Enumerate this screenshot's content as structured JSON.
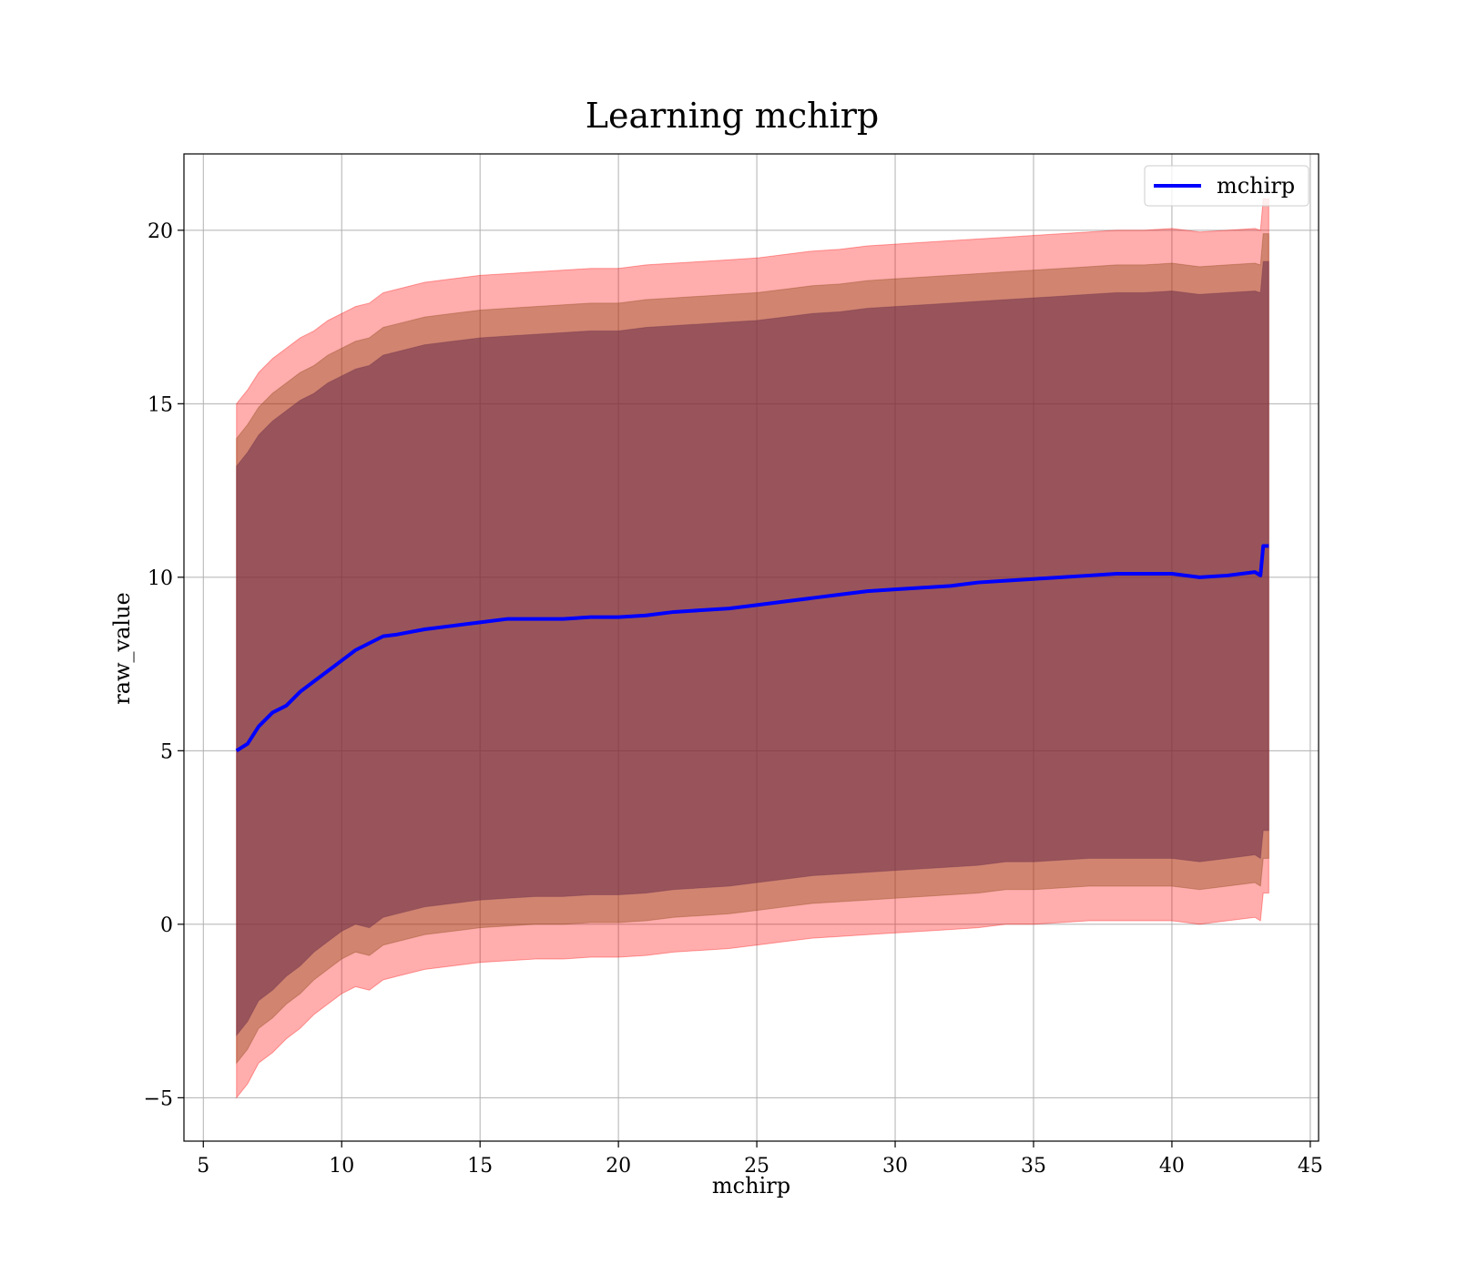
{
  "chart_data": {
    "type": "line",
    "title": "Learning mchirp",
    "xlabel": "mchirp",
    "ylabel": "raw_value",
    "xlim": [
      4.3,
      45.3
    ],
    "ylim": [
      -6.25,
      22.2
    ],
    "xticks": [
      5,
      10,
      15,
      20,
      25,
      30,
      35,
      40,
      45
    ],
    "xtick_labels": [
      "5",
      "10",
      "15",
      "20",
      "25",
      "30",
      "35",
      "40",
      "45"
    ],
    "yticks": [
      -5,
      0,
      5,
      10,
      15,
      20
    ],
    "ytick_labels": [
      "−5",
      "0",
      "5",
      "10",
      "15",
      "20"
    ],
    "grid": true,
    "legend_position": "top-right",
    "colors": {
      "line": "#0000ff",
      "band_outer": "#ff0000",
      "band_middle": "#8b4513",
      "band_inner": "#6b2e4a"
    },
    "series": [
      {
        "name": "mchirp",
        "style": "line",
        "x": [
          6.2,
          6.6,
          7.0,
          7.5,
          8.0,
          8.5,
          9.0,
          9.5,
          10.0,
          10.5,
          11.0,
          11.5,
          12,
          13,
          14,
          15,
          16,
          17,
          18,
          19,
          20,
          21,
          22,
          23,
          24,
          25,
          26,
          27,
          28,
          29,
          30,
          31,
          32,
          33,
          34,
          35,
          36,
          37,
          38,
          39,
          40,
          41,
          42,
          43,
          43.2,
          43.3,
          43.5
        ],
        "y": [
          5.0,
          5.2,
          5.7,
          6.1,
          6.3,
          6.7,
          7.0,
          7.3,
          7.6,
          7.9,
          8.1,
          8.3,
          8.35,
          8.5,
          8.6,
          8.7,
          8.8,
          8.8,
          8.8,
          8.85,
          8.85,
          8.9,
          9.0,
          9.05,
          9.1,
          9.2,
          9.3,
          9.4,
          9.5,
          9.6,
          9.65,
          9.7,
          9.75,
          9.85,
          9.9,
          9.95,
          10.0,
          10.05,
          10.1,
          10.1,
          10.1,
          10.0,
          10.05,
          10.15,
          10.05,
          10.9,
          10.9
        ]
      },
      {
        "name": "",
        "style": "band",
        "x": [
          6.2,
          6.6,
          7.0,
          7.5,
          8.0,
          8.5,
          9.0,
          9.5,
          10.0,
          10.5,
          11.0,
          11.5,
          12,
          13,
          14,
          15,
          16,
          17,
          18,
          19,
          20,
          21,
          22,
          23,
          24,
          25,
          26,
          27,
          28,
          29,
          30,
          31,
          32,
          33,
          34,
          35,
          36,
          37,
          38,
          39,
          40,
          41,
          42,
          43,
          43.2,
          43.3,
          43.5
        ],
        "lower": [
          -5.0,
          -4.6,
          -4.0,
          -3.7,
          -3.3,
          -3.0,
          -2.6,
          -2.3,
          -2.0,
          -1.8,
          -1.9,
          -1.6,
          -1.5,
          -1.3,
          -1.2,
          -1.1,
          -1.05,
          -1.0,
          -1.0,
          -0.95,
          -0.95,
          -0.9,
          -0.8,
          -0.75,
          -0.7,
          -0.6,
          -0.5,
          -0.4,
          -0.35,
          -0.3,
          -0.25,
          -0.2,
          -0.15,
          -0.1,
          0.0,
          0.0,
          0.05,
          0.1,
          0.1,
          0.1,
          0.1,
          0.0,
          0.1,
          0.2,
          0.1,
          0.9,
          0.9
        ],
        "upper": [
          15.0,
          15.4,
          15.9,
          16.3,
          16.6,
          16.9,
          17.1,
          17.4,
          17.6,
          17.8,
          17.9,
          18.2,
          18.3,
          18.5,
          18.6,
          18.7,
          18.75,
          18.8,
          18.85,
          18.9,
          18.9,
          19.0,
          19.05,
          19.1,
          19.15,
          19.2,
          19.3,
          19.4,
          19.45,
          19.55,
          19.6,
          19.65,
          19.7,
          19.75,
          19.8,
          19.85,
          19.9,
          19.95,
          20.0,
          20.0,
          20.05,
          19.95,
          20.0,
          20.05,
          20.0,
          20.9,
          20.9
        ]
      },
      {
        "name": "",
        "style": "band",
        "x": [
          6.2,
          6.6,
          7.0,
          7.5,
          8.0,
          8.5,
          9.0,
          9.5,
          10.0,
          10.5,
          11.0,
          11.5,
          12,
          13,
          14,
          15,
          16,
          17,
          18,
          19,
          20,
          21,
          22,
          23,
          24,
          25,
          26,
          27,
          28,
          29,
          30,
          31,
          32,
          33,
          34,
          35,
          36,
          37,
          38,
          39,
          40,
          41,
          42,
          43,
          43.2,
          43.3,
          43.5
        ],
        "lower": [
          -4.0,
          -3.6,
          -3.0,
          -2.7,
          -2.3,
          -2.0,
          -1.6,
          -1.3,
          -1.0,
          -0.8,
          -0.9,
          -0.6,
          -0.5,
          -0.3,
          -0.2,
          -0.1,
          -0.05,
          0.0,
          0.0,
          0.05,
          0.05,
          0.1,
          0.2,
          0.25,
          0.3,
          0.4,
          0.5,
          0.6,
          0.65,
          0.7,
          0.75,
          0.8,
          0.85,
          0.9,
          1.0,
          1.0,
          1.05,
          1.1,
          1.1,
          1.1,
          1.1,
          1.0,
          1.1,
          1.2,
          1.1,
          1.9,
          1.9
        ],
        "upper": [
          14.0,
          14.4,
          14.9,
          15.3,
          15.6,
          15.9,
          16.1,
          16.4,
          16.6,
          16.8,
          16.9,
          17.2,
          17.3,
          17.5,
          17.6,
          17.7,
          17.75,
          17.8,
          17.85,
          17.9,
          17.9,
          18.0,
          18.05,
          18.1,
          18.15,
          18.2,
          18.3,
          18.4,
          18.45,
          18.55,
          18.6,
          18.65,
          18.7,
          18.75,
          18.8,
          18.85,
          18.9,
          18.95,
          19.0,
          19.0,
          19.05,
          18.95,
          19.0,
          19.05,
          19.0,
          19.9,
          19.9
        ]
      },
      {
        "name": "",
        "style": "band",
        "x": [
          6.2,
          6.6,
          7.0,
          7.5,
          8.0,
          8.5,
          9.0,
          9.5,
          10.0,
          10.5,
          11.0,
          11.5,
          12,
          13,
          14,
          15,
          16,
          17,
          18,
          19,
          20,
          21,
          22,
          23,
          24,
          25,
          26,
          27,
          28,
          29,
          30,
          31,
          32,
          33,
          34,
          35,
          36,
          37,
          38,
          39,
          40,
          41,
          42,
          43,
          43.2,
          43.3,
          43.5
        ],
        "lower": [
          -3.2,
          -2.8,
          -2.2,
          -1.9,
          -1.5,
          -1.2,
          -0.8,
          -0.5,
          -0.2,
          0.0,
          -0.1,
          0.2,
          0.3,
          0.5,
          0.6,
          0.7,
          0.75,
          0.8,
          0.8,
          0.85,
          0.85,
          0.9,
          1.0,
          1.05,
          1.1,
          1.2,
          1.3,
          1.4,
          1.45,
          1.5,
          1.55,
          1.6,
          1.65,
          1.7,
          1.8,
          1.8,
          1.85,
          1.9,
          1.9,
          1.9,
          1.9,
          1.8,
          1.9,
          2.0,
          1.9,
          2.7,
          2.7
        ],
        "upper": [
          13.2,
          13.6,
          14.1,
          14.5,
          14.8,
          15.1,
          15.3,
          15.6,
          15.8,
          16.0,
          16.1,
          16.4,
          16.5,
          16.7,
          16.8,
          16.9,
          16.95,
          17.0,
          17.05,
          17.1,
          17.1,
          17.2,
          17.25,
          17.3,
          17.35,
          17.4,
          17.5,
          17.6,
          17.65,
          17.75,
          17.8,
          17.85,
          17.9,
          17.95,
          18.0,
          18.05,
          18.1,
          18.15,
          18.2,
          18.2,
          18.25,
          18.15,
          18.2,
          18.25,
          18.2,
          19.1,
          19.1
        ]
      }
    ]
  }
}
